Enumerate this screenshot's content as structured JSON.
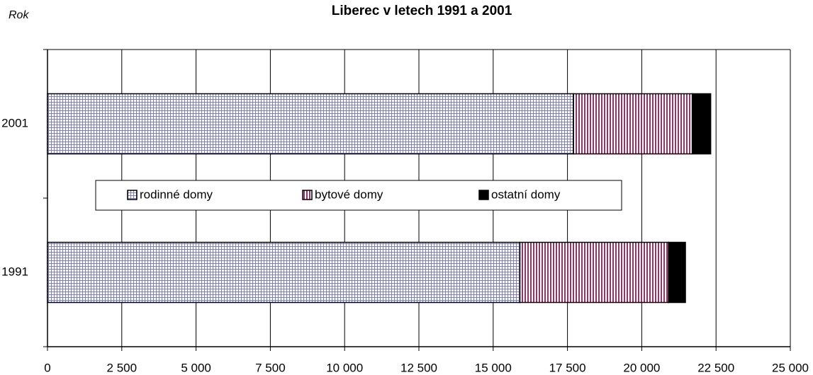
{
  "chart_data": {
    "type": "stacked-barh",
    "title": "Liberec v letech 1991 a 2001",
    "y_label": "Rok",
    "categories": [
      "1991",
      "2001"
    ],
    "series": [
      {
        "name": "rodinné domy",
        "color": "#8080b0",
        "pattern": "grid",
        "values": [
          15900,
          17700
        ]
      },
      {
        "name": "bytové domy",
        "color": "#993366",
        "pattern": "vstripe",
        "values": [
          5000,
          4000
        ]
      },
      {
        "name": "ostatní domy",
        "color": "#000000",
        "pattern": "solid",
        "values": [
          570,
          620
        ]
      }
    ],
    "xlim": [
      0,
      25000
    ],
    "xticks": [
      0,
      {
        "value": 2500,
        "label": "2 500"
      },
      {
        "value": 5000,
        "label": "5 000"
      },
      {
        "value": 7500,
        "label": "7 500"
      },
      {
        "value": 10000,
        "label": "10 000"
      },
      {
        "value": 12500,
        "label": "12 500"
      },
      {
        "value": 15000,
        "label": "15 000"
      },
      {
        "value": 17500,
        "label": "17 500"
      },
      {
        "value": 20000,
        "label": "20 000"
      },
      {
        "value": 22500,
        "label": "22 500"
      },
      {
        "value": 25000,
        "label": "25 000"
      }
    ],
    "grid": true,
    "legend": "center"
  }
}
